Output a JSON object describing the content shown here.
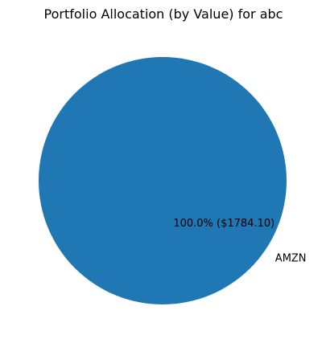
{
  "chart_data": {
    "type": "pie",
    "title": "Portfolio Allocation (by Value) for abc",
    "slices": [
      {
        "label": "AMZN",
        "value": 1784.1,
        "percent_label": "100.0% ($1784.10)",
        "color": "#1f77b4"
      }
    ]
  }
}
